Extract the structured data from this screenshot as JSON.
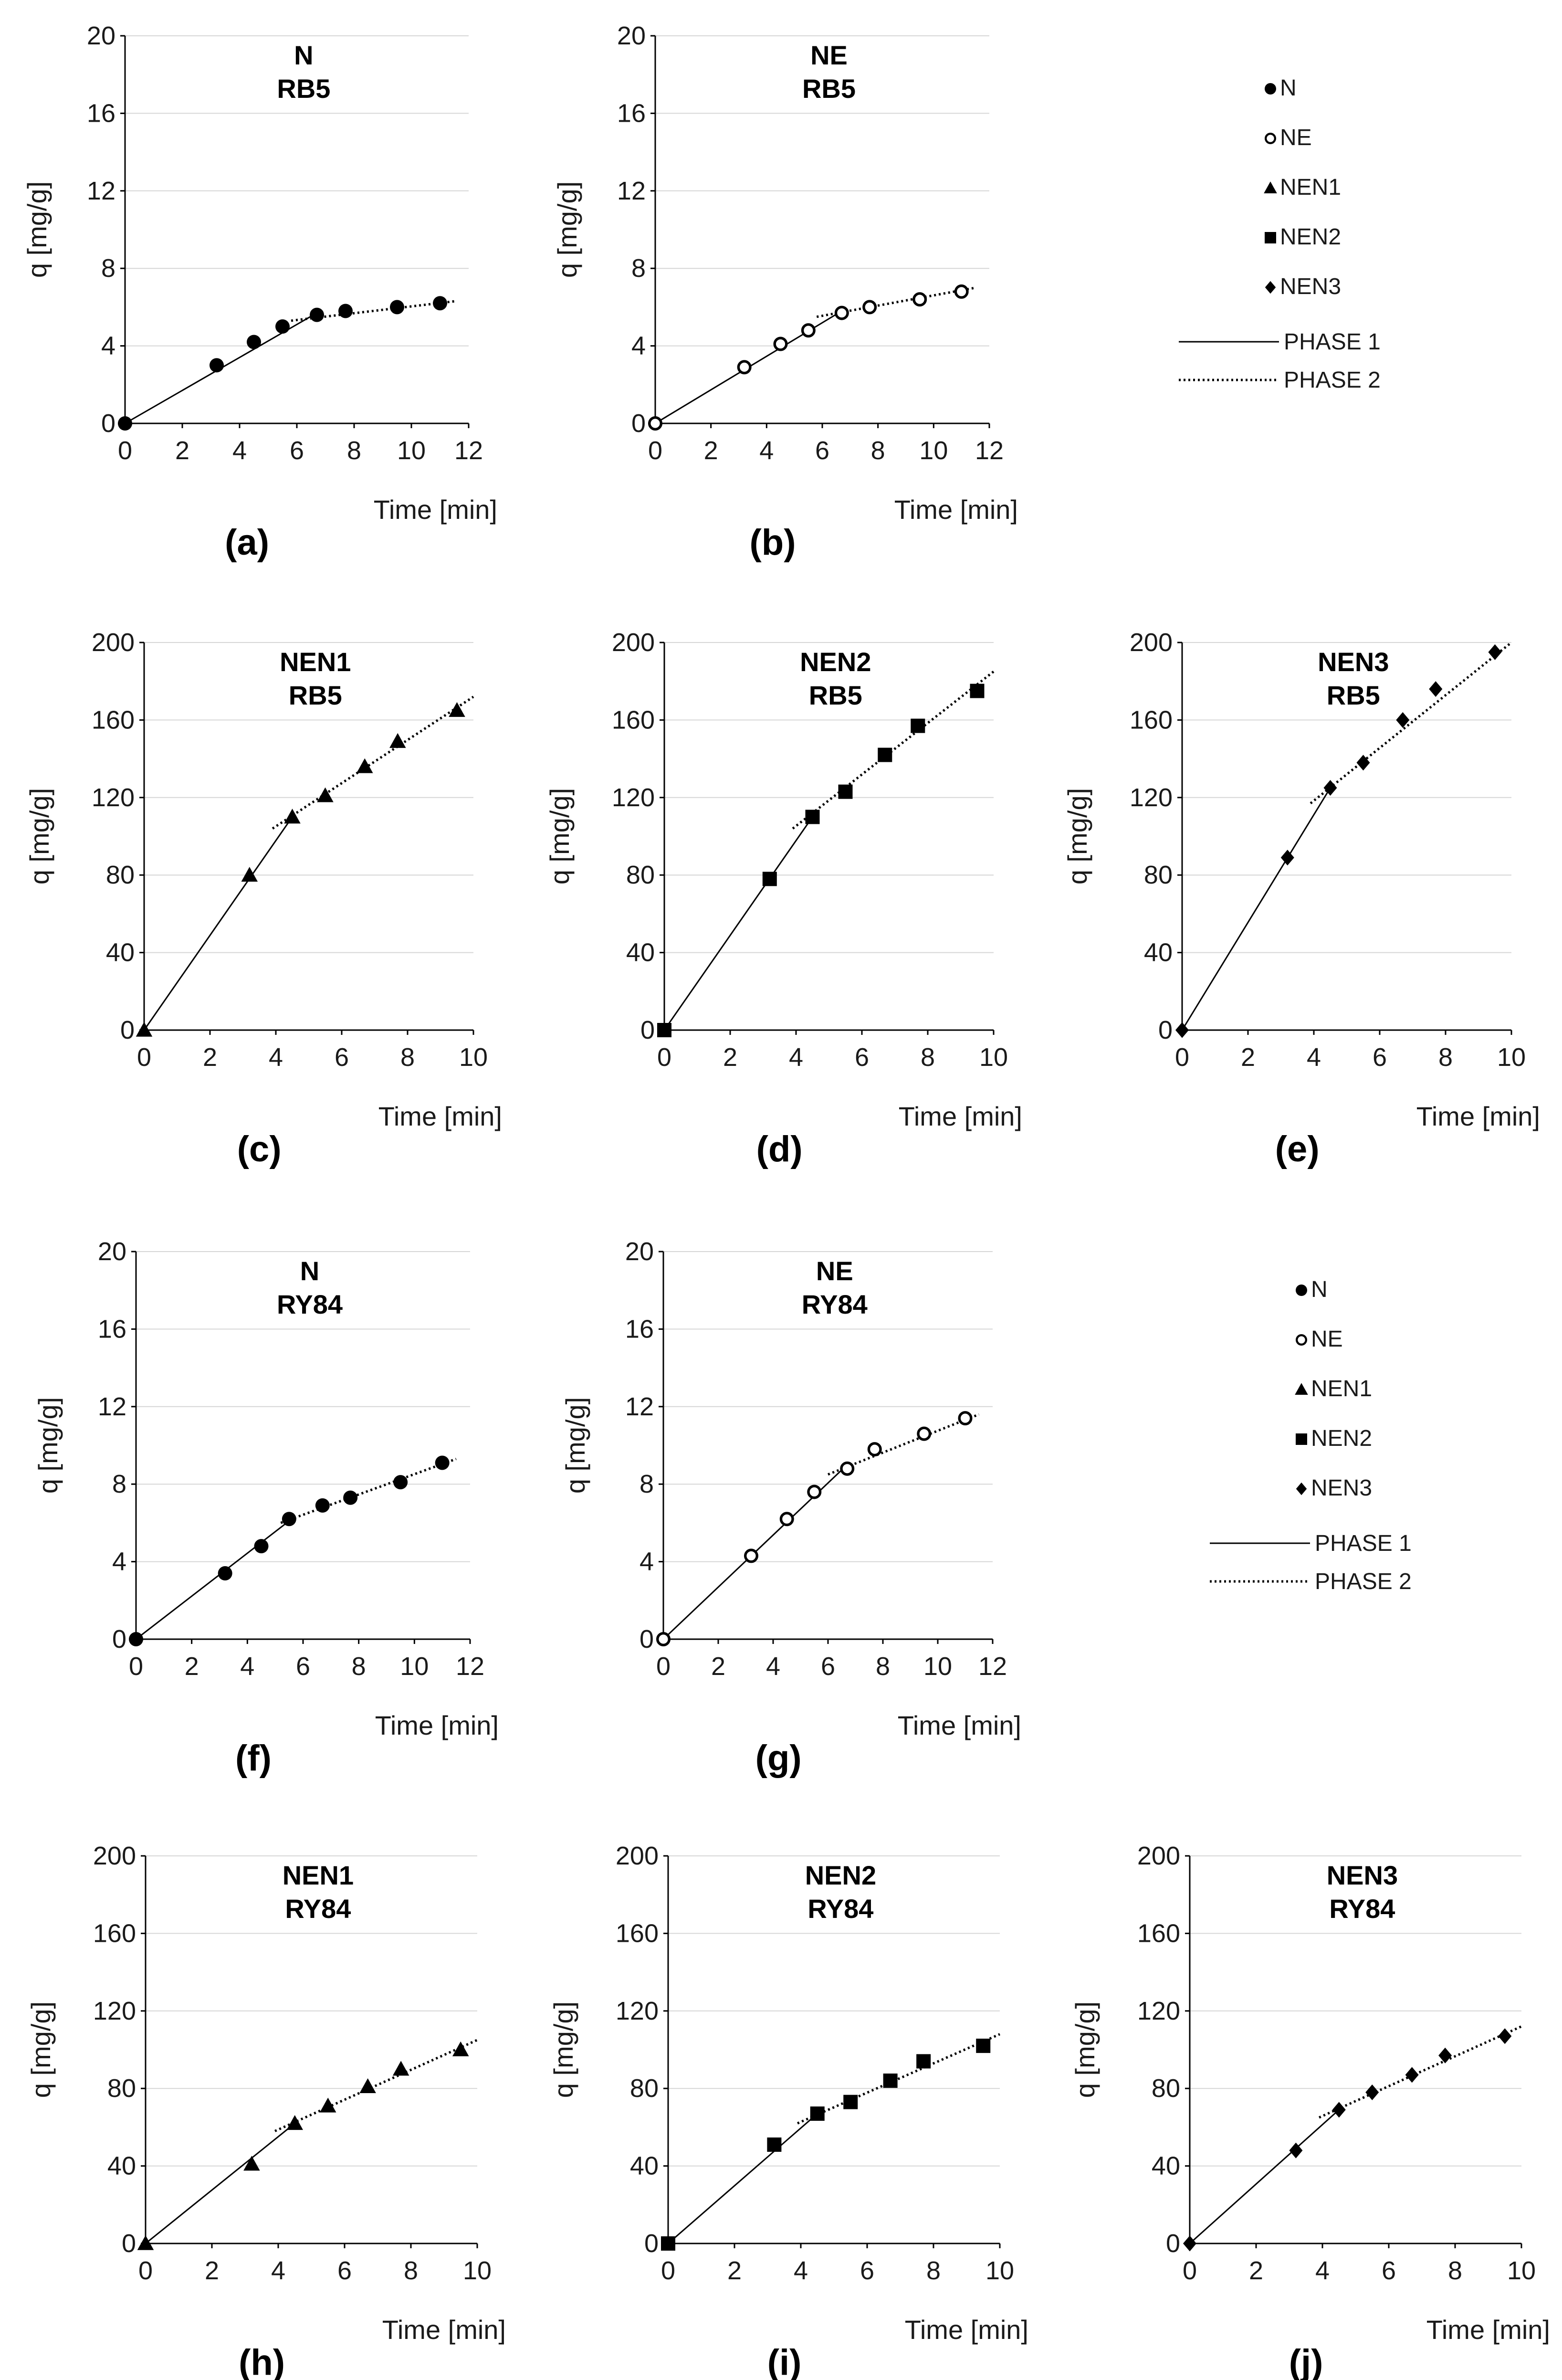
{
  "chart_data": [
    {
      "id": "a",
      "type": "line",
      "title": [
        "N",
        "RB5"
      ],
      "letter": "(a)",
      "xlabel": "Time [min]",
      "ylabel": "q [mg/g]",
      "xlim": [
        0,
        12
      ],
      "ylim": [
        0,
        20
      ],
      "xticks": [
        0,
        2,
        4,
        6,
        8,
        10,
        12
      ],
      "yticks": [
        0,
        4,
        8,
        12,
        16,
        20
      ],
      "marker": "filled-circle",
      "points": {
        "x": [
          0,
          3.2,
          4.5,
          5.5,
          6.7,
          7.7,
          9.5,
          11.0
        ],
        "y": [
          0,
          3.0,
          4.2,
          5.0,
          5.6,
          5.8,
          6.0,
          6.2
        ]
      },
      "phase1": [
        [
          0,
          0
        ],
        [
          6.7,
          5.7
        ]
      ],
      "phase2": [
        [
          5.8,
          5.3
        ],
        [
          11.5,
          6.3
        ]
      ]
    },
    {
      "id": "b",
      "type": "line",
      "title": [
        "NE",
        "RB5"
      ],
      "letter": "(b)",
      "xlabel": "Time [min]",
      "ylabel": "q [mg/g]",
      "xlim": [
        0,
        12
      ],
      "ylim": [
        0,
        20
      ],
      "xticks": [
        0,
        2,
        4,
        6,
        8,
        10,
        12
      ],
      "yticks": [
        0,
        4,
        8,
        12,
        16,
        20
      ],
      "marker": "open-circle",
      "points": {
        "x": [
          0,
          3.2,
          4.5,
          5.5,
          6.7,
          7.7,
          9.5,
          11.0
        ],
        "y": [
          0,
          2.9,
          4.1,
          4.8,
          5.7,
          6.0,
          6.4,
          6.8
        ]
      },
      "phase1": [
        [
          0,
          0
        ],
        [
          6.7,
          5.8
        ]
      ],
      "phase2": [
        [
          5.8,
          5.5
        ],
        [
          11.5,
          7.0
        ]
      ]
    },
    {
      "id": "c",
      "type": "line",
      "title": [
        "NEN1",
        "RB5"
      ],
      "letter": "(c)",
      "xlabel": "Time [min]",
      "ylabel": "q [mg/g]",
      "xlim": [
        0,
        10
      ],
      "ylim": [
        0,
        200
      ],
      "xticks": [
        0,
        2,
        4,
        6,
        8,
        10
      ],
      "yticks": [
        0,
        40,
        80,
        120,
        160,
        200
      ],
      "marker": "triangle",
      "points": {
        "x": [
          0,
          3.2,
          4.5,
          5.5,
          6.7,
          7.7,
          9.5
        ],
        "y": [
          0,
          80,
          110,
          121,
          136,
          149,
          165
        ]
      },
      "phase1": [
        [
          0,
          0
        ],
        [
          4.5,
          110
        ]
      ],
      "phase2": [
        [
          3.9,
          104
        ],
        [
          10.0,
          172
        ]
      ]
    },
    {
      "id": "d",
      "type": "line",
      "title": [
        "NEN2",
        "RB5"
      ],
      "letter": "(d)",
      "xlabel": "Time [min]",
      "ylabel": "q [mg/g]",
      "xlim": [
        0,
        10
      ],
      "ylim": [
        0,
        200
      ],
      "xticks": [
        0,
        2,
        4,
        6,
        8,
        10
      ],
      "yticks": [
        0,
        40,
        80,
        120,
        160,
        200
      ],
      "marker": "square",
      "points": {
        "x": [
          0,
          3.2,
          4.5,
          5.5,
          6.7,
          7.7,
          9.5
        ],
        "y": [
          0,
          78,
          110,
          123,
          142,
          157,
          175
        ]
      },
      "phase1": [
        [
          0,
          0
        ],
        [
          4.5,
          110
        ]
      ],
      "phase2": [
        [
          3.9,
          104
        ],
        [
          10.0,
          185
        ]
      ]
    },
    {
      "id": "e",
      "type": "line",
      "title": [
        "NEN3",
        "RB5"
      ],
      "letter": "(e)",
      "xlabel": "Time [min]",
      "ylabel": "q [mg/g]",
      "xlim": [
        0,
        10
      ],
      "ylim": [
        0,
        200
      ],
      "xticks": [
        0,
        2,
        4,
        6,
        8,
        10
      ],
      "yticks": [
        0,
        40,
        80,
        120,
        160,
        200
      ],
      "marker": "diamond",
      "points": {
        "x": [
          0,
          3.2,
          4.5,
          5.5,
          6.7,
          7.7,
          9.5
        ],
        "y": [
          0,
          89,
          125,
          138,
          160,
          176,
          195
        ]
      },
      "phase1": [
        [
          0,
          0
        ],
        [
          4.5,
          125
        ]
      ],
      "phase2": [
        [
          3.9,
          117
        ],
        [
          10.0,
          200
        ]
      ]
    },
    {
      "id": "f",
      "type": "line",
      "title": [
        "N",
        "RY84"
      ],
      "letter": "(f)",
      "xlabel": "Time [min]",
      "ylabel": "q [mg/g]",
      "xlim": [
        0,
        12
      ],
      "ylim": [
        0,
        20
      ],
      "xticks": [
        0,
        2,
        4,
        6,
        8,
        10,
        12
      ],
      "yticks": [
        0,
        4,
        8,
        12,
        16,
        20
      ],
      "marker": "filled-circle",
      "points": {
        "x": [
          0,
          3.2,
          4.5,
          5.5,
          6.7,
          7.7,
          9.5,
          11.0
        ],
        "y": [
          0,
          3.4,
          4.8,
          6.2,
          6.9,
          7.3,
          8.1,
          9.1
        ]
      },
      "phase1": [
        [
          0,
          0
        ],
        [
          5.5,
          6.1
        ]
      ],
      "phase2": [
        [
          5.2,
          6.0
        ],
        [
          11.5,
          9.3
        ]
      ]
    },
    {
      "id": "g",
      "type": "line",
      "title": [
        "NE",
        "RY84"
      ],
      "letter": "(g)",
      "xlabel": "Time [min]",
      "ylabel": "q [mg/g]",
      "xlim": [
        0,
        12
      ],
      "ylim": [
        0,
        20
      ],
      "xticks": [
        0,
        2,
        4,
        6,
        8,
        10,
        12
      ],
      "yticks": [
        0,
        4,
        8,
        12,
        16,
        20
      ],
      "marker": "open-circle",
      "points": {
        "x": [
          0,
          3.2,
          4.5,
          5.5,
          6.7,
          7.7,
          9.5,
          11.0
        ],
        "y": [
          0,
          4.3,
          6.2,
          7.6,
          8.8,
          9.8,
          10.6,
          11.4
        ]
      },
      "phase1": [
        [
          0,
          0
        ],
        [
          6.7,
          9.0
        ]
      ],
      "phase2": [
        [
          6.0,
          8.5
        ],
        [
          11.5,
          11.6
        ]
      ]
    },
    {
      "id": "h",
      "type": "line",
      "title": [
        "NEN1",
        "RY84"
      ],
      "letter": "(h)",
      "xlabel": "Time [min]",
      "ylabel": "q [mg/g]",
      "xlim": [
        0,
        10
      ],
      "ylim": [
        0,
        200
      ],
      "xticks": [
        0,
        2,
        4,
        6,
        8,
        10
      ],
      "yticks": [
        0,
        40,
        80,
        120,
        160,
        200
      ],
      "marker": "triangle",
      "points": {
        "x": [
          0,
          3.2,
          4.5,
          5.5,
          6.7,
          7.7,
          9.5
        ],
        "y": [
          0,
          41,
          62,
          71,
          81,
          90,
          100
        ]
      },
      "phase1": [
        [
          0,
          0
        ],
        [
          4.5,
          62
        ]
      ],
      "phase2": [
        [
          3.9,
          58
        ],
        [
          10.0,
          105
        ]
      ]
    },
    {
      "id": "i",
      "type": "line",
      "title": [
        "NEN2",
        "RY84"
      ],
      "letter": "(i)",
      "xlabel": "Time [min]",
      "ylabel": "q [mg/g]",
      "xlim": [
        0,
        10
      ],
      "ylim": [
        0,
        200
      ],
      "xticks": [
        0,
        2,
        4,
        6,
        8,
        10
      ],
      "yticks": [
        0,
        40,
        80,
        120,
        160,
        200
      ],
      "marker": "square",
      "points": {
        "x": [
          0,
          3.2,
          4.5,
          5.5,
          6.7,
          7.7,
          9.5
        ],
        "y": [
          0,
          51,
          67,
          73,
          84,
          94,
          102
        ]
      },
      "phase1": [
        [
          0,
          0
        ],
        [
          4.5,
          67
        ]
      ],
      "phase2": [
        [
          3.9,
          62
        ],
        [
          10.0,
          108
        ]
      ]
    },
    {
      "id": "j",
      "type": "line",
      "title": [
        "NEN3",
        "RY84"
      ],
      "letter": "(j)",
      "xlabel": "Time [min]",
      "ylabel": "q [mg/g]",
      "xlim": [
        0,
        10
      ],
      "ylim": [
        0,
        200
      ],
      "xticks": [
        0,
        2,
        4,
        6,
        8,
        10
      ],
      "yticks": [
        0,
        40,
        80,
        120,
        160,
        200
      ],
      "marker": "diamond",
      "points": {
        "x": [
          0,
          3.2,
          4.5,
          5.5,
          6.7,
          7.7,
          9.5
        ],
        "y": [
          0,
          48,
          69,
          78,
          87,
          97,
          107
        ]
      },
      "phase1": [
        [
          0,
          0
        ],
        [
          4.5,
          69
        ]
      ],
      "phase2": [
        [
          3.9,
          65
        ],
        [
          10.0,
          112
        ]
      ]
    }
  ],
  "legends": [
    {
      "id": "legend-top",
      "items": [
        {
          "marker": "filled-circle",
          "label": "N"
        },
        {
          "marker": "open-circle",
          "label": "NE"
        },
        {
          "marker": "triangle",
          "label": "NEN1"
        },
        {
          "marker": "square",
          "label": "NEN2"
        },
        {
          "marker": "diamond",
          "label": "NEN3"
        }
      ],
      "lines": [
        {
          "style": "solid",
          "label": "PHASE 1"
        },
        {
          "style": "dotted",
          "label": "PHASE 2"
        }
      ]
    },
    {
      "id": "legend-bottom",
      "items": [
        {
          "marker": "filled-circle",
          "label": "N"
        },
        {
          "marker": "open-circle",
          "label": "NE"
        },
        {
          "marker": "triangle",
          "label": "NEN1"
        },
        {
          "marker": "square",
          "label": "NEN2"
        },
        {
          "marker": "diamond",
          "label": "NEN3"
        }
      ],
      "lines": [
        {
          "style": "solid",
          "label": "PHASE 1"
        },
        {
          "style": "dotted",
          "label": "PHASE 2"
        }
      ]
    }
  ]
}
